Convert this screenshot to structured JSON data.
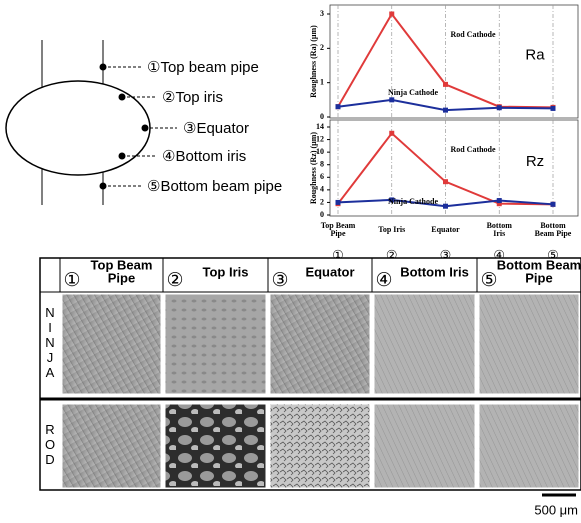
{
  "diagram": {
    "labels": [
      "①Top beam pipe",
      "②Top iris",
      "③Equator",
      "④Bottom iris",
      "⑤Bottom beam pipe"
    ]
  },
  "chart_data": [
    {
      "type": "line",
      "ylabel": "Roughness (Ra) (μm)",
      "annotation": "Ra",
      "categories": [
        null,
        null,
        null,
        null,
        null
      ],
      "ylim": [
        0,
        3
      ],
      "yticks": [
        0,
        1,
        2,
        3
      ],
      "grid": true,
      "series": [
        {
          "name": "Rod Cathode",
          "color": "#e03a3a",
          "values": [
            0.3,
            3.0,
            0.95,
            0.3,
            0.28
          ]
        },
        {
          "name": "Ninja Cathode",
          "color": "#1c2f9c",
          "values": [
            0.3,
            0.5,
            0.2,
            0.27,
            0.25
          ]
        }
      ]
    },
    {
      "type": "line",
      "ylabel": "Roughness (Rz) (μm)",
      "annotation": "Rz",
      "categories": [
        "Top Beam\nPipe",
        "Top Iris",
        "Equator",
        "Bottom\nIris",
        "Bottom\nBeam Pipe"
      ],
      "x_markers": [
        "①",
        "②",
        "③",
        "④",
        "⑤"
      ],
      "ylim": [
        0,
        14
      ],
      "yticks": [
        0,
        2,
        4,
        6,
        8,
        10,
        12,
        14
      ],
      "grid": true,
      "series": [
        {
          "name": "Rod Cathode",
          "color": "#e03a3a",
          "values": [
            1.8,
            13,
            5.3,
            1.8,
            1.7
          ]
        },
        {
          "name": "Ninja Cathode",
          "color": "#1c2f9c",
          "values": [
            2.0,
            2.4,
            1.4,
            2.3,
            1.7
          ]
        }
      ]
    }
  ],
  "table": {
    "headers": [
      {
        "number": "①",
        "title": "Top Beam\nPipe"
      },
      {
        "number": "②",
        "title": "Top Iris"
      },
      {
        "number": "③",
        "title": "Equator"
      },
      {
        "number": "④",
        "title": "Bottom Iris"
      },
      {
        "number": "⑤",
        "title": "Bottom Beam\nPipe"
      }
    ],
    "rows": [
      {
        "label": "NINJA"
      },
      {
        "label": "ROD"
      }
    ],
    "scale_bar": "500 μm"
  }
}
